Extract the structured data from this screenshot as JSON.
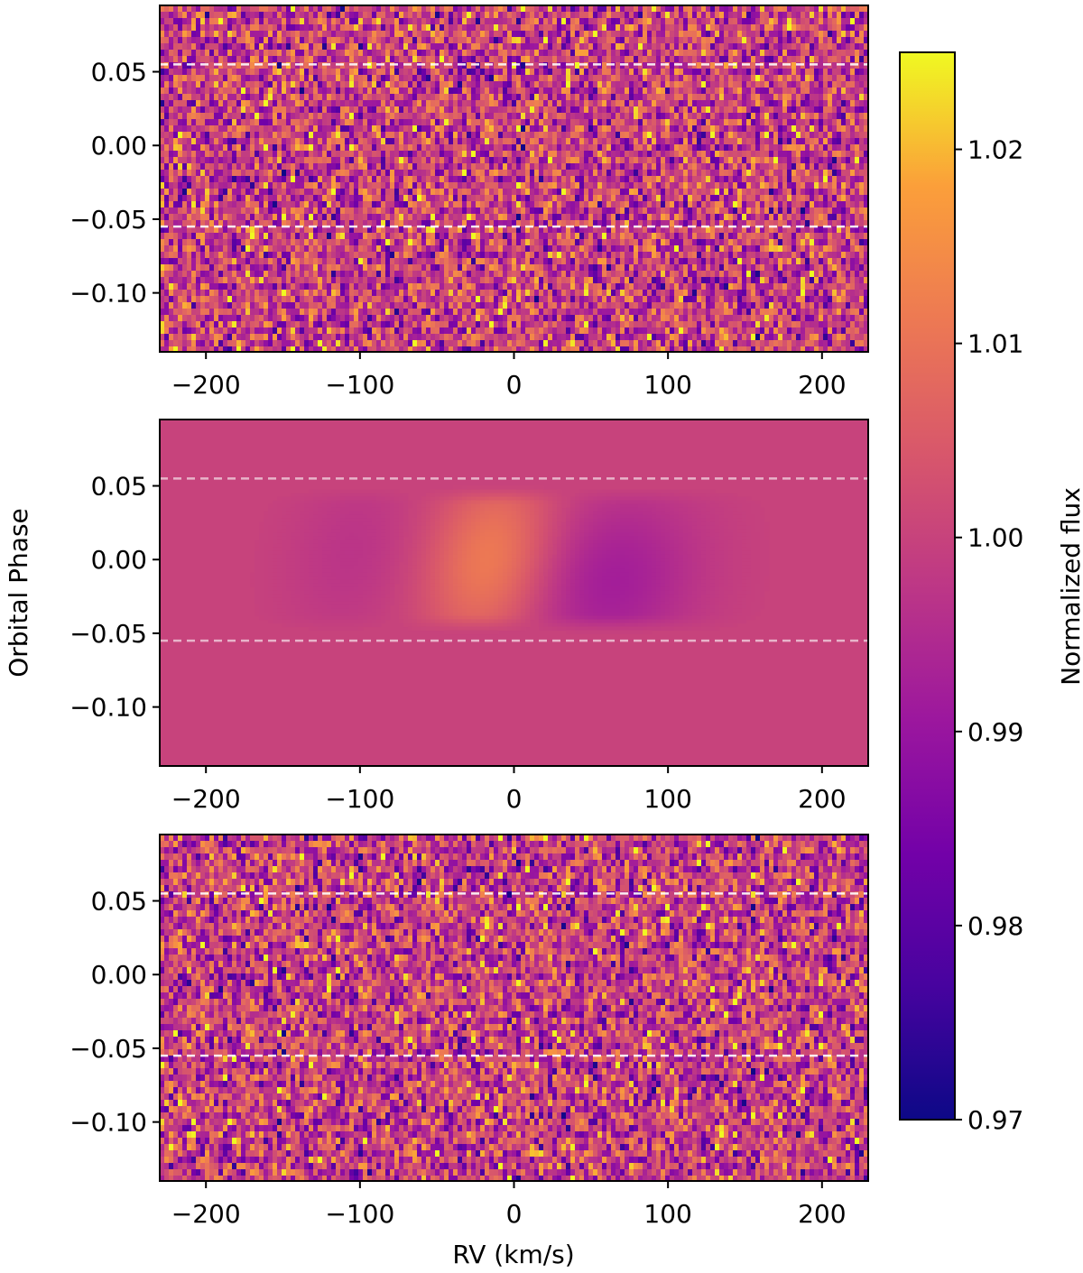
{
  "chart_data": {
    "type": "heatmap",
    "ylabel": "Orbital Phase",
    "xlabel": "RV (km/s)",
    "xlim": [
      -230,
      230
    ],
    "ylim": [
      -0.14,
      0.095
    ],
    "x_ticks": [
      -200,
      -100,
      0,
      100,
      200
    ],
    "x_tick_labels": [
      "−200",
      "−100",
      "0",
      "100",
      "200"
    ],
    "y_ticks": [
      -0.1,
      -0.05,
      0.0,
      0.05
    ],
    "y_tick_labels": [
      "−0.10",
      "−0.05",
      "0.00",
      "0.05"
    ],
    "transit_phase_markers": [
      -0.055,
      0.055
    ],
    "panels": [
      {
        "kind": "observed",
        "style": "noisy"
      },
      {
        "kind": "model",
        "style": "smooth",
        "features": [
          {
            "label": "emission",
            "rv": -15,
            "phase": 0.0,
            "amplitude": 1.012,
            "width_kms": 28
          },
          {
            "label": "absorption",
            "rv": 65,
            "phase": -0.015,
            "amplitude": 0.992,
            "width_kms": 40
          },
          {
            "label": "absorption",
            "rv": -105,
            "phase": 0.005,
            "amplitude": 0.997,
            "width_kms": 30
          }
        ]
      },
      {
        "kind": "residual",
        "style": "noisy"
      }
    ],
    "colorbar": {
      "label": "Normalized flux",
      "colormap": "plasma",
      "vmin": 0.97,
      "vmax": 1.025,
      "ticks": [
        0.97,
        0.98,
        0.99,
        1.0,
        1.01,
        1.02
      ],
      "tick_labels": [
        "0.97",
        "0.98",
        "0.99",
        "1.00",
        "1.01",
        "1.02"
      ]
    },
    "grid": false
  }
}
